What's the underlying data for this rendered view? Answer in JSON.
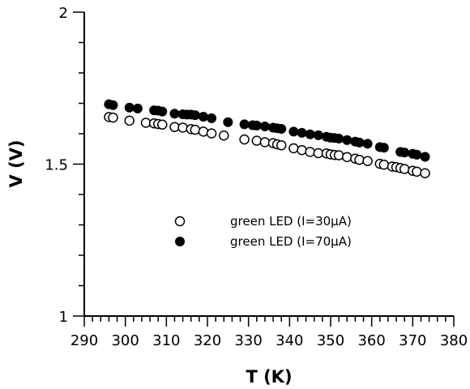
{
  "chart_data": {
    "type": "scatter",
    "title": "",
    "xlabel": "T (K)",
    "ylabel": "V (V)",
    "xlim": [
      290,
      380
    ],
    "ylim": [
      1,
      2
    ],
    "x_ticks": [
      "290",
      "300",
      "310",
      "320",
      "330",
      "340",
      "350",
      "360",
      "370",
      "380"
    ],
    "y_ticks": [
      "1",
      "1.5",
      "2"
    ],
    "x_tick_values": [
      290,
      300,
      310,
      320,
      330,
      340,
      350,
      360,
      370,
      380
    ],
    "y_tick_values": [
      1,
      1.5,
      2
    ],
    "grid": false,
    "legend_position": "center-left",
    "series": [
      {
        "name": "green LED (I=30μA)",
        "marker": "open-circle",
        "color": "#000000",
        "x": [
          296,
          297,
          301,
          305,
          307,
          308,
          309,
          312,
          314,
          316,
          317,
          319,
          321,
          324,
          329,
          332,
          334,
          336,
          337,
          338,
          341,
          343,
          345,
          347,
          349,
          350,
          351,
          352,
          354,
          356,
          357,
          359,
          362,
          363,
          365,
          366,
          367,
          368,
          370,
          371,
          373
        ],
        "y": [
          1.655,
          1.653,
          1.643,
          1.636,
          1.634,
          1.632,
          1.63,
          1.622,
          1.62,
          1.615,
          1.613,
          1.607,
          1.601,
          1.594,
          1.581,
          1.577,
          1.572,
          1.569,
          1.565,
          1.562,
          1.552,
          1.546,
          1.54,
          1.536,
          1.535,
          1.532,
          1.53,
          1.529,
          1.523,
          1.518,
          1.514,
          1.51,
          1.501,
          1.498,
          1.492,
          1.49,
          1.487,
          1.484,
          1.478,
          1.475,
          1.47
        ]
      },
      {
        "name": "green LED (I=70μA)",
        "marker": "filled-circle",
        "color": "#000000",
        "x": [
          296,
          297,
          301,
          303,
          307,
          308,
          309,
          312,
          314,
          315,
          316,
          317,
          319,
          321,
          325,
          329,
          331,
          332,
          334,
          336,
          337,
          338,
          341,
          343,
          345,
          347,
          349,
          350,
          351,
          352,
          354,
          356,
          357,
          359,
          362,
          363,
          367,
          368,
          370,
          371,
          373
        ],
        "y": [
          1.697,
          1.694,
          1.686,
          1.683,
          1.677,
          1.676,
          1.673,
          1.666,
          1.664,
          1.663,
          1.663,
          1.661,
          1.656,
          1.651,
          1.638,
          1.631,
          1.628,
          1.627,
          1.624,
          1.62,
          1.618,
          1.616,
          1.607,
          1.603,
          1.598,
          1.595,
          1.59,
          1.587,
          1.586,
          1.584,
          1.579,
          1.574,
          1.571,
          1.567,
          1.556,
          1.554,
          1.54,
          1.538,
          1.534,
          1.531,
          1.524
        ]
      }
    ]
  }
}
